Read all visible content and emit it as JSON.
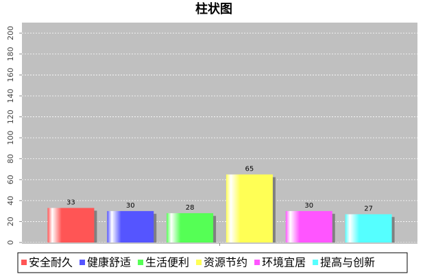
{
  "chart_data": {
    "type": "bar",
    "title": "柱状图",
    "series": [
      {
        "name": "安全耐久",
        "color": "#ff5555",
        "values": [
          33
        ]
      },
      {
        "name": "健康舒适",
        "color": "#5555ff",
        "values": [
          30
        ]
      },
      {
        "name": "生活便利",
        "color": "#55ff55",
        "values": [
          28
        ]
      },
      {
        "name": "资源节约",
        "color": "#ffff55",
        "values": [
          65
        ]
      },
      {
        "name": "环境宜居",
        "color": "#ff55ff",
        "values": [
          30
        ]
      },
      {
        "name": "提高与创新",
        "color": "#55ffff",
        "values": [
          27
        ]
      }
    ],
    "ylim": [
      0,
      210
    ],
    "yticks": [
      0,
      20,
      40,
      60,
      80,
      100,
      120,
      140,
      160,
      180,
      200
    ],
    "grid": true,
    "legend": "bottom"
  }
}
